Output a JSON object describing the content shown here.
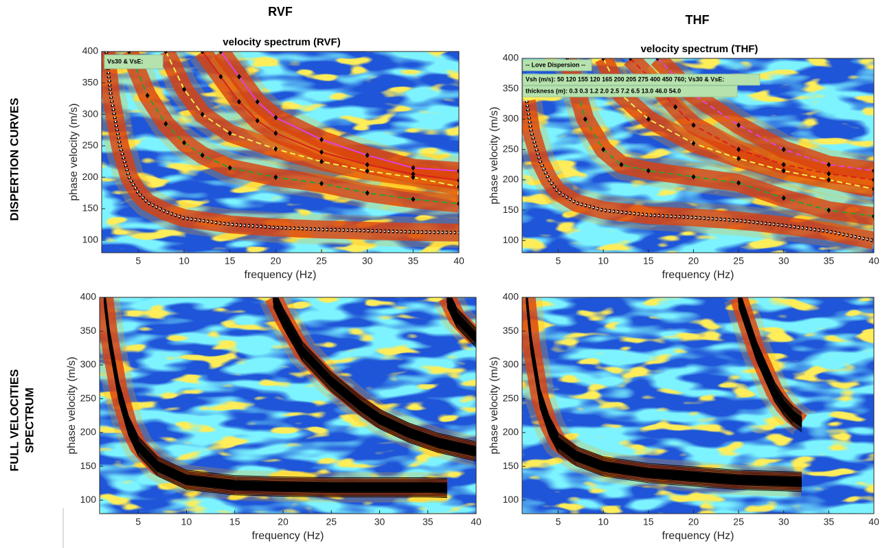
{
  "column_titles": [
    "RVF",
    "THF"
  ],
  "row_titles": [
    "DISPERTION CURVES",
    "FULL VELOCITIES",
    "SPECTRUM"
  ],
  "chart_data": [
    {
      "type": "dispersion",
      "title": "velocity spectrum (RVF)",
      "xlabel": "frequency (Hz)",
      "ylabel": "phase velocity (m/s)",
      "xlim": [
        1,
        40
      ],
      "ylim": [
        80,
        400
      ],
      "xticks": [
        5,
        10,
        15,
        20,
        25,
        30,
        35,
        40
      ],
      "yticks": [
        100,
        150,
        200,
        250,
        300,
        350,
        400
      ],
      "annotations": [
        "Vs30 & VsE:"
      ],
      "series": [
        {
          "color": "#ffffff",
          "linestyle": "dotted",
          "x": [
            1.5,
            2,
            3,
            4,
            5,
            6,
            8,
            10,
            15,
            20,
            25,
            30,
            35,
            40
          ],
          "values": [
            400,
            330,
            250,
            200,
            175,
            160,
            145,
            135,
            125,
            120,
            117,
            115,
            113,
            112
          ]
        },
        {
          "color": "#2ca02c",
          "linestyle": "dashed",
          "marker": "diamond",
          "x": [
            4,
            6,
            8,
            10,
            12,
            15,
            20,
            25,
            30,
            35,
            40
          ],
          "values": [
            400,
            330,
            285,
            255,
            235,
            215,
            200,
            190,
            175,
            165,
            158
          ]
        },
        {
          "color": "#f0f050",
          "linestyle": "dashed",
          "marker": "diamond",
          "x": [
            8,
            10,
            12,
            15,
            20,
            25,
            30,
            35,
            40
          ],
          "values": [
            400,
            340,
            300,
            270,
            245,
            225,
            210,
            200,
            185
          ]
        },
        {
          "color": "#d62020",
          "linestyle": "solid",
          "marker": "diamond",
          "x": [
            12,
            14,
            16,
            18,
            20,
            25,
            30,
            35,
            40
          ],
          "values": [
            400,
            360,
            320,
            290,
            270,
            240,
            220,
            205,
            195
          ]
        },
        {
          "color": "#e040e0",
          "linestyle": "solid",
          "marker": "diamond",
          "x": [
            14,
            16,
            18,
            20,
            25,
            30,
            35,
            40
          ],
          "values": [
            400,
            360,
            320,
            295,
            260,
            235,
            215,
            210
          ]
        }
      ]
    },
    {
      "type": "dispersion",
      "title": "velocity spectrum (THF)",
      "xlabel": "frequency (Hz)",
      "ylabel": "phase velocity (m/s)",
      "xlim": [
        1,
        40
      ],
      "ylim": [
        80,
        400
      ],
      "xticks": [
        5,
        10,
        15,
        20,
        25,
        30,
        35,
        40
      ],
      "yticks": [
        100,
        150,
        200,
        250,
        300,
        350,
        400
      ],
      "annotations": [
        "-- Love Dispersion --",
        "Vsh (m/s): 50  120  155  120  165  200  205  275  400  450  760; Vs30 & VsE:",
        "thickness (m): 0.3    0.3    1.2    2.0    2.5    7.2    6.5    13.0    46.0    54.0"
      ],
      "series": [
        {
          "color": "#ffffff",
          "linestyle": "dotted",
          "x": [
            1.5,
            2,
            3,
            4,
            5,
            7,
            10,
            15,
            20,
            25,
            30,
            35,
            40
          ],
          "values": [
            330,
            280,
            230,
            200,
            180,
            162,
            150,
            142,
            138,
            133,
            125,
            115,
            100
          ]
        },
        {
          "color": "#2ca02c",
          "linestyle": "dashed",
          "marker": "diamond",
          "x": [
            6,
            8,
            10,
            12,
            15,
            20,
            25,
            30,
            35,
            40
          ],
          "values": [
            400,
            300,
            250,
            225,
            215,
            205,
            195,
            170,
            150,
            140
          ]
        },
        {
          "color": "#f0f050",
          "linestyle": "dashed",
          "marker": "diamond",
          "x": [
            10,
            12,
            15,
            20,
            25,
            30,
            35,
            40
          ],
          "values": [
            400,
            340,
            300,
            260,
            235,
            215,
            200,
            185
          ]
        },
        {
          "color": "#d62020",
          "linestyle": "dashed",
          "marker": "diamond",
          "x": [
            13,
            15,
            18,
            20,
            25,
            30,
            35,
            40
          ],
          "values": [
            400,
            370,
            320,
            290,
            250,
            225,
            210,
            200
          ]
        },
        {
          "color": "#e040e0",
          "linestyle": "dashed",
          "marker": "diamond",
          "x": [
            16,
            18,
            20,
            25,
            30,
            35,
            40
          ],
          "values": [
            400,
            370,
            340,
            290,
            250,
            225,
            215
          ]
        }
      ]
    },
    {
      "type": "contour",
      "xlabel": "frequency (Hz)",
      "ylabel": "phase velocity (m/s)",
      "xlim": [
        1,
        40
      ],
      "ylim": [
        80,
        400
      ],
      "xticks": [
        5,
        10,
        15,
        20,
        25,
        30,
        35,
        40
      ],
      "yticks": [
        100,
        150,
        200,
        250,
        300,
        350,
        400
      ],
      "series": [
        {
          "color": "#000000",
          "x": [
            1.5,
            2,
            3,
            4,
            5,
            7,
            10,
            15,
            20,
            25,
            30,
            35,
            37
          ],
          "values": [
            400,
            340,
            260,
            210,
            180,
            150,
            130,
            122,
            120,
            119,
            119,
            119,
            118
          ]
        },
        {
          "color": "#000000",
          "x": [
            19,
            20,
            22,
            25,
            28,
            30,
            33,
            36,
            40
          ],
          "values": [
            400,
            370,
            320,
            275,
            240,
            220,
            200,
            185,
            172
          ]
        },
        {
          "color": "#000000",
          "x": [
            37,
            38,
            40
          ],
          "values": [
            400,
            370,
            340
          ]
        }
      ]
    },
    {
      "type": "contour",
      "xlabel": "frequency (Hz)",
      "ylabel": "phase velocity (m/s)",
      "xlim": [
        1,
        40
      ],
      "ylim": [
        80,
        400
      ],
      "xticks": [
        5,
        10,
        15,
        20,
        25,
        30,
        35,
        40
      ],
      "yticks": [
        100,
        150,
        200,
        250,
        300,
        350,
        400
      ],
      "series": [
        {
          "color": "#000000",
          "x": [
            1.5,
            2,
            3,
            4,
            5,
            7,
            10,
            15,
            20,
            25,
            30,
            32
          ],
          "values": [
            400,
            330,
            250,
            210,
            185,
            165,
            150,
            140,
            135,
            130,
            128,
            127
          ]
        },
        {
          "color": "#000000",
          "x": [
            25,
            26,
            27,
            28,
            29,
            30,
            31,
            32
          ],
          "values": [
            400,
            360,
            320,
            290,
            260,
            240,
            225,
            215
          ]
        }
      ]
    }
  ]
}
